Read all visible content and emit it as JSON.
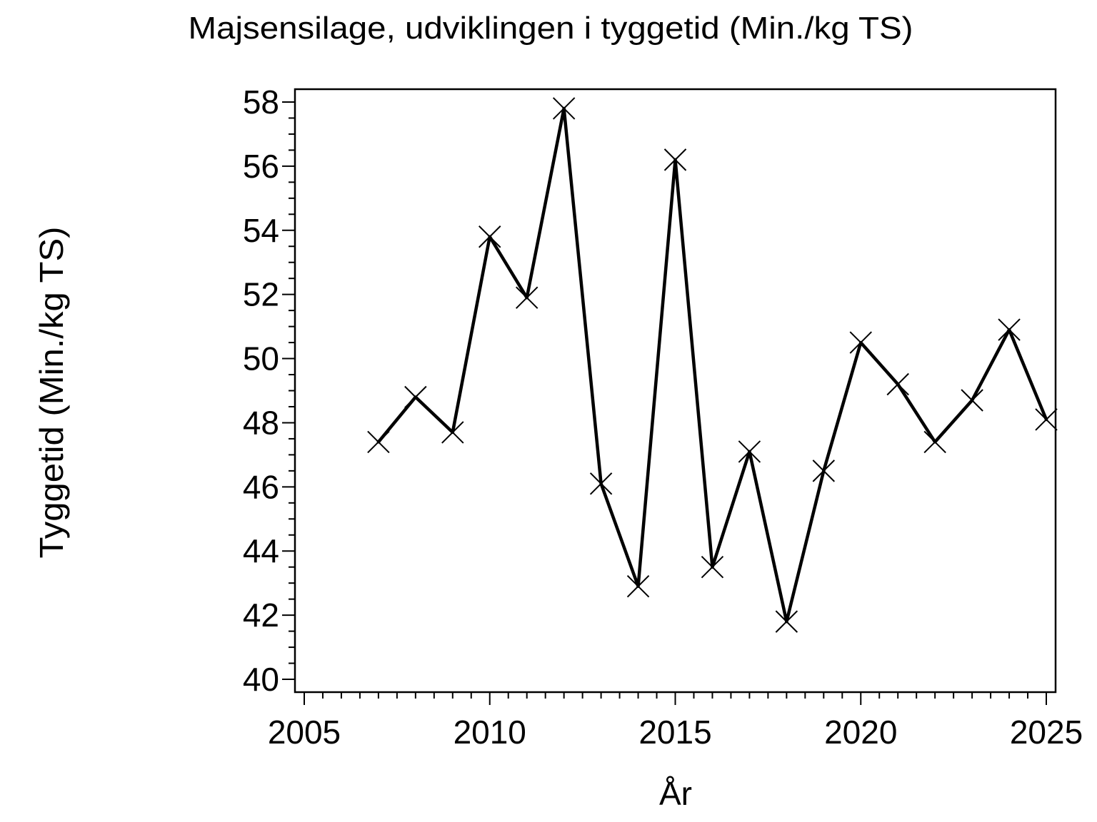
{
  "chart_data": {
    "type": "line",
    "title": "Majsensilage, udviklingen i tyggetid (Min./kg TS)",
    "xlabel": "År",
    "ylabel": "Tyggetid (Min./kg TS)",
    "x": [
      2007,
      2008,
      2009,
      2010,
      2011,
      2012,
      2013,
      2014,
      2015,
      2016,
      2017,
      2018,
      2019,
      2020,
      2021,
      2022,
      2023,
      2024,
      2025
    ],
    "values": [
      47.4,
      48.8,
      47.7,
      53.8,
      51.9,
      57.8,
      46.1,
      42.9,
      56.2,
      43.5,
      47.1,
      41.8,
      46.5,
      50.5,
      49.2,
      47.4,
      48.7,
      50.9,
      48.1
    ],
    "series_name": "Tyggetid",
    "xlim": [
      2004.75,
      2025.25
    ],
    "ylim": [
      39.6,
      58.4
    ],
    "x_major_ticks": [
      2005,
      2010,
      2015,
      2020,
      2025
    ],
    "x_minor_step": 0.5,
    "x_minor_range": [
      2005,
      2025
    ],
    "y_major_ticks": [
      40,
      42,
      44,
      46,
      48,
      50,
      52,
      54,
      56,
      58
    ],
    "y_minor_step": 0.5,
    "y_minor_range": [
      40,
      58
    ],
    "marker": "x",
    "line_color": "#000000",
    "frame_color": "#000000",
    "background": "#ffffff",
    "grid": false,
    "legend": null
  }
}
